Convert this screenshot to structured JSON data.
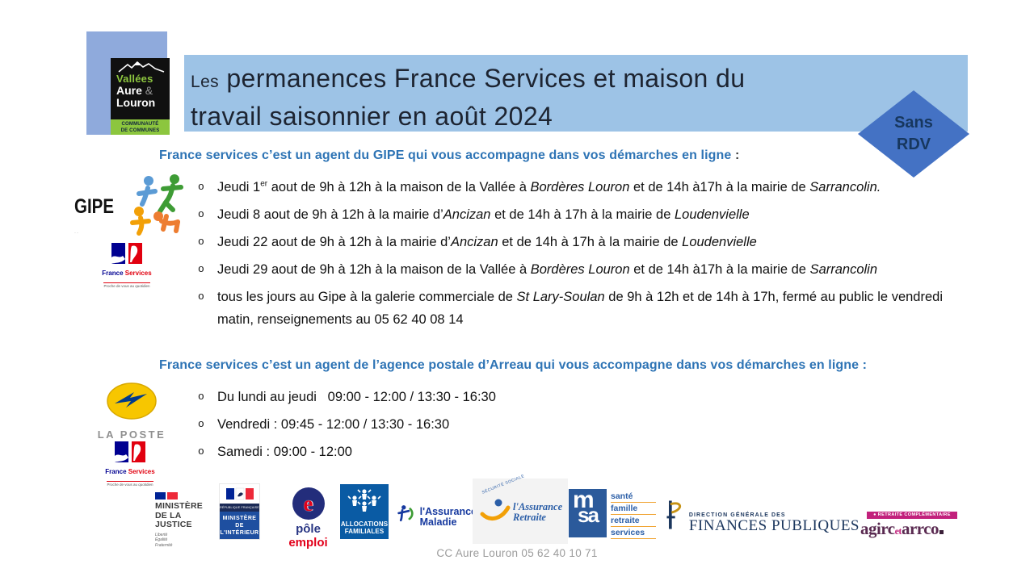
{
  "colors": {
    "banner_bg": "#9DC3E6",
    "org_rect_bg": "#8FAADC",
    "diamond_bg": "#4472C4",
    "heading_blue": "#2E74B5"
  },
  "org_logo": {
    "line1": "Vallées",
    "line2": "Aure",
    "amp": "&",
    "line3": "Louron",
    "band_line1": "COMMUNAUTÉ",
    "band_line2": "DE COMMUNES"
  },
  "title": {
    "small": "Les",
    "line1_rest": " permanences France Services et maison du",
    "line2": "travail saisonnier en août 2024"
  },
  "badge": {
    "line1": "Sans",
    "line2": "RDV"
  },
  "bullets": {
    "marker": "o"
  },
  "section_gipe": {
    "heading": "France services c’est un agent du GIPE qui vous accompagne dans vos démarches en ligne",
    "heading_suffix": " :",
    "items": [
      [
        {
          "t": "Jeudi 1"
        },
        {
          "t": "er",
          "s": 1
        },
        {
          "t": " aout de 9h à 12h à la maison de la Vallée à "
        },
        {
          "t": "Bordères Louron",
          "i": 1
        },
        {
          "t": " et de 14h à17h à la mairie de "
        },
        {
          "t": "Sarrancolin.",
          "i": 1
        }
      ],
      [
        {
          "t": "Jeudi 8 aout de 9h à 12h à la mairie d’"
        },
        {
          "t": "Ancizan",
          "i": 1
        },
        {
          "t": " et de 14h à 17h à la mairie de "
        },
        {
          "t": "Loudenvielle",
          "i": 1
        }
      ],
      [
        {
          "t": "Jeudi 22 aout de 9h à 12h à la mairie d’"
        },
        {
          "t": "Ancizan",
          "i": 1
        },
        {
          "t": " et de 14h à 17h à la mairie de "
        },
        {
          "t": "Loudenvielle",
          "i": 1
        }
      ],
      [
        {
          "t": "Jeudi 29 aout de 9h à 12h à la maison de la Vallée à "
        },
        {
          "t": "Bordères Louron",
          "i": 1
        },
        {
          "t": " et de 14h à17h à la mairie de "
        },
        {
          "t": "Sarrancolin",
          "i": 1
        }
      ],
      [
        {
          "t": "tous les jours au Gipe à la galerie commerciale de "
        },
        {
          "t": "St Lary-Soulan",
          "i": 1
        },
        {
          "t": " de 9h à 12h et de 14h à 17h, fermé au public le vendredi matin, renseignements au 05 62 40 08 14"
        }
      ]
    ]
  },
  "section_poste": {
    "heading": "France services c’est un agent de l’agence postale d’Arreau qui vous accompagne dans vos démarches en ligne :",
    "items": [
      [
        {
          "t": "Du lundi au jeudi   09:00 - 12:00 / 13:30 - 16:30"
        }
      ],
      [
        {
          "t": "Vendredi : 09:45 - 12:00 / 13:30 - 16:30"
        }
      ],
      [
        {
          "t": "Samedi : 09:00 - 12:00"
        }
      ]
    ]
  },
  "gipe_logo": {
    "text": "GIPE"
  },
  "fs_logo": {
    "france": "France",
    "services": "Services",
    "tagline": "Proche de vous au quotidien"
  },
  "laposte_logo": {
    "text": "LA POSTE"
  },
  "partners": {
    "justice": {
      "line1": "MINISTÈRE",
      "line2": "DE LA JUSTICE",
      "motto1": "Liberté",
      "motto2": "Égalité",
      "motto3": "Fraternité"
    },
    "interieur": {
      "republique": "RÉPUBLIQUE FRANÇAISE",
      "line1": "MINISTÈRE",
      "line2": "DE",
      "line3": "L'INTÉRIEUR"
    },
    "pole_emploi": {
      "e": "e",
      "word1": "pôle",
      "word2": "emploi"
    },
    "caf": {
      "line1": "ALLOCATIONS",
      "line2": "FAMILIALES"
    },
    "maladie": {
      "line1": "l'Assurance",
      "line2": "Maladie"
    },
    "retraite": {
      "arc": "SÉCURITÉ SOCIALE",
      "line1": "l'Assurance",
      "line2": "Retraite"
    },
    "msa": {
      "letters_top": "m",
      "letters_bottom": "sa",
      "words": [
        "santé",
        "famille",
        "retraite",
        "services"
      ]
    },
    "dgfip": {
      "small": "DIRECTION GÉNÉRALE DES",
      "big": "FINANCES PUBLIQUES"
    },
    "agirc": {
      "bar": "RETRAITE COMPLÉMENTAIRE",
      "w1": "agirc",
      "et": "et",
      "w2": "arrco"
    }
  },
  "footer": "CC Aure Louron  05 62 40 10 71"
}
